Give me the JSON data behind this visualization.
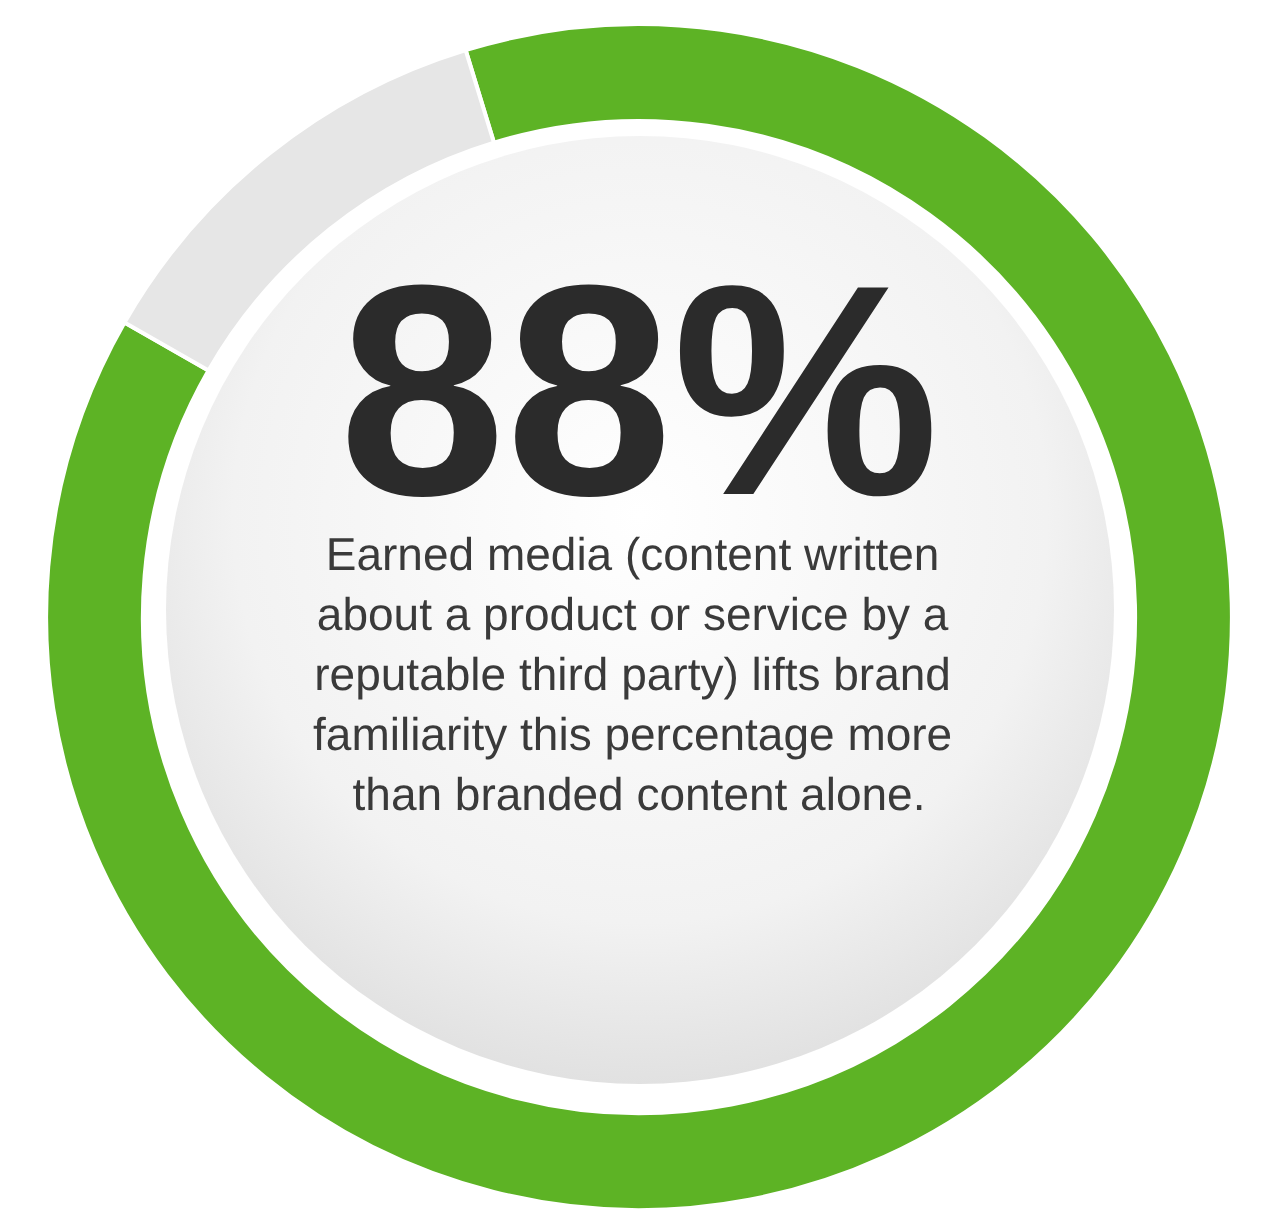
{
  "chart_data": {
    "type": "donut",
    "title": "88%",
    "subtitle": "Earned media (content written about a product or service by a reputable third party) lifts brand familiarity this percentage more than branded content alone.",
    "categories": [
      null,
      null
    ],
    "values": [
      88,
      12
    ],
    "colors": [
      "#5db325",
      "#e6e6e6"
    ]
  }
}
